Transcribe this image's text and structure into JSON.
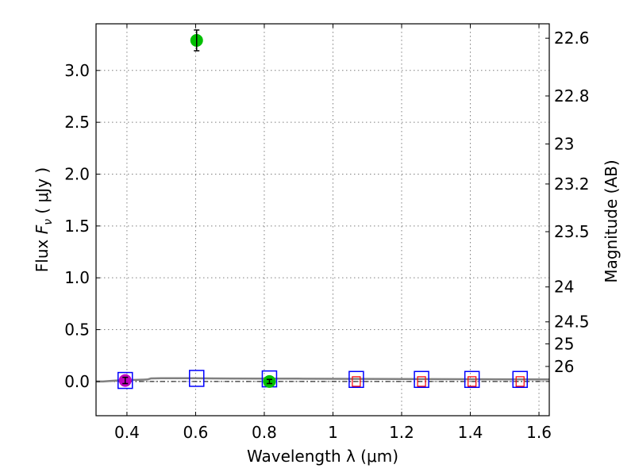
{
  "chart_data": {
    "type": "scatter",
    "xlabel": "Wavelength  λ (μm)",
    "ylabel": "Flux  F_ν  ( μJy )",
    "ylabel_parts": {
      "pre": "Flux ",
      "sym": "F",
      "sub": "ν",
      "post": "  ( μJy )"
    },
    "y2label": "Magnitude (AB)",
    "xlim": [
      0.31,
      1.63
    ],
    "ylim": [
      -0.33,
      3.45
    ],
    "grid": true,
    "x_ticks": [
      {
        "value": 0.4,
        "label": "0.4"
      },
      {
        "value": 0.6,
        "label": "0.6"
      },
      {
        "value": 0.8,
        "label": "0.8"
      },
      {
        "value": 1.0,
        "label": "1"
      },
      {
        "value": 1.2,
        "label": "1.2"
      },
      {
        "value": 1.4,
        "label": "1.4"
      },
      {
        "value": 1.6,
        "label": "1.6"
      }
    ],
    "y_ticks": [
      {
        "value": 0.0,
        "label": "0.0"
      },
      {
        "value": 0.5,
        "label": "0.5"
      },
      {
        "value": 1.0,
        "label": "1.0"
      },
      {
        "value": 1.5,
        "label": "1.5"
      },
      {
        "value": 2.0,
        "label": "2.0"
      },
      {
        "value": 2.5,
        "label": "2.5"
      },
      {
        "value": 3.0,
        "label": "3.0"
      }
    ],
    "y2_ticks": [
      {
        "flux": 3.311,
        "label": "22.6"
      },
      {
        "flux": 2.754,
        "label": "22.8"
      },
      {
        "flux": 2.291,
        "label": "23"
      },
      {
        "flux": 1.905,
        "label": "23.2"
      },
      {
        "flux": 1.445,
        "label": "23.5"
      },
      {
        "flux": 0.912,
        "label": "24"
      },
      {
        "flux": 0.575,
        "label": "24.5"
      },
      {
        "flux": 0.363,
        "label": "25"
      },
      {
        "flux": 0.145,
        "label": "26"
      }
    ],
    "model_spectrum": {
      "color": "#808080",
      "x": [
        0.31,
        0.33,
        0.35,
        0.37,
        0.39,
        0.41,
        0.43,
        0.45,
        0.46,
        0.47,
        0.5,
        0.55,
        0.6,
        0.65,
        0.7,
        0.8,
        0.9,
        1.0,
        1.1,
        1.2,
        1.3,
        1.4,
        1.5,
        1.63
      ],
      "y": [
        0.0,
        0.0,
        0.005,
        0.01,
        0.012,
        0.014,
        0.016,
        0.018,
        0.02,
        0.03,
        0.032,
        0.032,
        0.031,
        0.03,
        0.029,
        0.028,
        0.027,
        0.026,
        0.025,
        0.024,
        0.023,
        0.022,
        0.021,
        0.02
      ]
    },
    "model_band_fluxes": [
      {
        "x": 0.395,
        "y": 0.01
      },
      {
        "x": 0.603,
        "y": 0.03
      },
      {
        "x": 0.815,
        "y": 0.025
      },
      {
        "x": 1.068,
        "y": 0.02
      },
      {
        "x": 1.258,
        "y": 0.02
      },
      {
        "x": 1.405,
        "y": 0.02
      },
      {
        "x": 1.545,
        "y": 0.02
      }
    ],
    "observed_fluxes": [
      {
        "x": 0.395,
        "y": 0.01,
        "yerr": 0.03,
        "color": "#bf00bf"
      },
      {
        "x": 0.603,
        "y": 3.29,
        "yerr": 0.1,
        "color": "#00bf00"
      },
      {
        "x": 0.815,
        "y": 0.0,
        "yerr": 0.02,
        "color": "#00bf00"
      }
    ],
    "upper_limits": [
      {
        "x": 1.068,
        "y": 0.0
      },
      {
        "x": 1.258,
        "y": 0.0
      },
      {
        "x": 1.405,
        "y": 0.0
      },
      {
        "x": 1.545,
        "y": 0.0
      }
    ],
    "colors": {
      "model_box": "#0000ff",
      "limit_box": "#ff0000",
      "zero_line": "#000000"
    }
  }
}
